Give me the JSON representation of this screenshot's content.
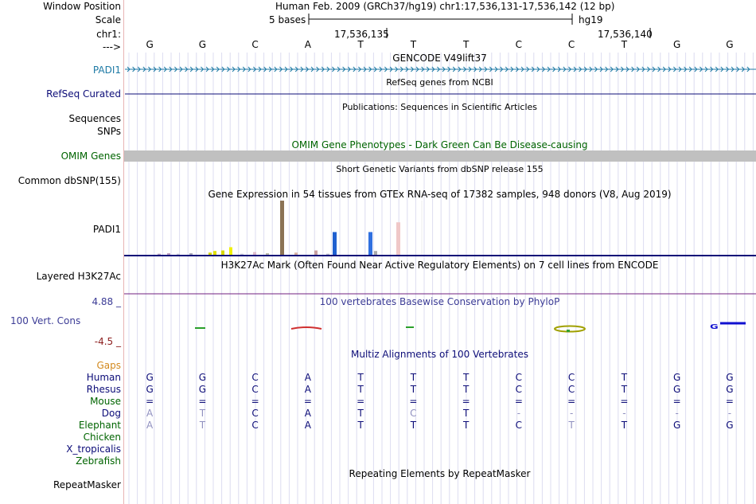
{
  "colors": {
    "navy": "#0c0c78",
    "green": "#006400",
    "blue": "#3c3c96",
    "darkred": "#8c1e1e",
    "orange": "#d2891e",
    "grid": "#c8c8e6",
    "gray": "#c0c0c0"
  },
  "header": {
    "labels": [
      "Window Position",
      "Scale",
      "chr1:",
      "--->"
    ],
    "position_title": "Human Feb. 2009 (GRCh37/hg19)   chr1:17,536,131-17,536,142 (12 bp)",
    "scale_text": "5 bases",
    "scale_db": "hg19",
    "coord1": "17,536,135",
    "coord2": "17,536,140"
  },
  "bases": [
    "G",
    "G",
    "C",
    "A",
    "T",
    "T",
    "T",
    "C",
    "C",
    "T",
    "G",
    "G"
  ],
  "tracks": {
    "gencode_title": "GENCODE V49lift37",
    "padi1_label": "PADI1",
    "refseq_title": "RefSeq genes from NCBI",
    "refseq_label": "RefSeq Curated",
    "pubs_title": "Publications: Sequences in Scientific Articles",
    "sequences_label": "Sequences",
    "snps_label": "SNPs",
    "omim_title": "OMIM Gene Phenotypes - Dark Green Can Be Disease-causing",
    "omim_label": "OMIM Genes",
    "dbsnp_title": "Short Genetic Variants from dbSNP release 155",
    "dbsnp_label": "Common dbSNP(155)",
    "gtex_title": "Gene Expression in 54 tissues from GTEx RNA-seq of 17382 samples, 948 donors (V8, Aug 2019)",
    "gtex_label": "PADI1",
    "h3k_title": "H3K27Ac Mark (Often Found Near Active Regulatory Elements) on 7 cell lines from ENCODE",
    "h3k_label": "Layered H3K27Ac",
    "phylop_title": "100 vertebrates Basewise Conservation by PhyloP",
    "phylop_max": "4.88 _",
    "phylop_label": "100 Vert. Cons",
    "phylop_min": "-4.5 _",
    "multiz_title": "Multiz Alignments of 100 Vertebrates",
    "gaps_label": "Gaps",
    "repeat_title": "Repeating Elements by RepeatMasker",
    "repeat_label": "RepeatMasker"
  },
  "gtex_bars": [
    {
      "c": "#bba4c4",
      "v": 0.02
    },
    {
      "c": "#c0a0c0",
      "v": 0.03
    },
    {
      "c": "#ccd",
      "v": 0.02
    },
    {
      "c": "#aab",
      "v": 0.03
    },
    {
      "c": "#d4d400",
      "v": 0.04
    },
    {
      "c": "#e0e000",
      "v": 0.07
    },
    {
      "c": "#d8d800",
      "v": 0.08
    },
    {
      "c": "#f0f000",
      "v": 0.14
    },
    {
      "c": "#ccccdd",
      "v": 0.02
    },
    {
      "c": "#ddbbcc",
      "v": 0.05
    },
    {
      "c": "#bba",
      "v": 0.03
    },
    {
      "c": "#8b7355",
      "v": 1.0
    },
    {
      "c": "#d8b0a0",
      "v": 0.04
    },
    {
      "c": "#c8a0a0",
      "v": 0.08
    },
    {
      "c": "#bbbbcc",
      "v": 0.02
    },
    {
      "c": "#2060d0",
      "v": 0.42
    },
    {
      "c": "#3070e0",
      "v": 0.42
    },
    {
      "c": "#aaa",
      "v": 0.07
    },
    {
      "c": "#f0c8c8",
      "v": 0.6
    }
  ],
  "multiz": [
    {
      "species": "Human",
      "color": "#0c0c78",
      "seq": [
        "G",
        "G",
        "C",
        "A",
        "T",
        "T",
        "T",
        "C",
        "C",
        "T",
        "G",
        "G"
      ]
    },
    {
      "species": "Rhesus",
      "color": "#0c0c78",
      "seq": [
        "G",
        "G",
        "C",
        "A",
        "T",
        "T",
        "T",
        "C",
        "C",
        "T",
        "G",
        "G"
      ]
    },
    {
      "species": "Mouse",
      "color": "#006400",
      "seq": [
        "=",
        "=",
        "=",
        "=",
        "=",
        "=",
        "=",
        "=",
        "=",
        "=",
        "=",
        "="
      ]
    },
    {
      "species": "Dog",
      "color": "#0c0c78",
      "seq": [
        "A",
        "T",
        "C",
        "A",
        "T",
        "C",
        "T",
        "-",
        "-",
        "-",
        "-",
        "-"
      ]
    },
    {
      "species": "Elephant",
      "color": "#006400",
      "seq": [
        "A",
        "T",
        "C",
        "A",
        "T",
        "T",
        "T",
        "C",
        "T",
        "T",
        "G",
        "G"
      ]
    },
    {
      "species": "Chicken",
      "color": "#006400",
      "seq": []
    },
    {
      "species": "X_tropicalis",
      "color": "#0c0c78",
      "seq": []
    },
    {
      "species": "Zebrafish",
      "color": "#006400",
      "seq": []
    }
  ]
}
